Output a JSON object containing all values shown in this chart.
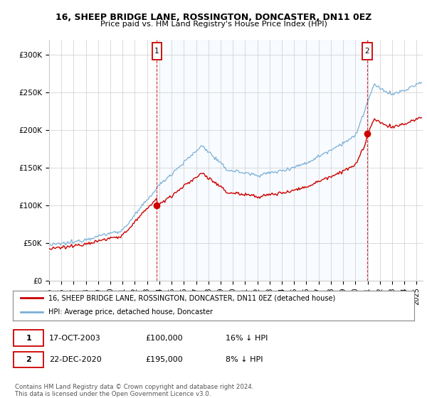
{
  "title_line1": "16, SHEEP BRIDGE LANE, ROSSINGTON, DONCASTER, DN11 0EZ",
  "title_line2": "Price paid vs. HM Land Registry's House Price Index (HPI)",
  "xlim_start": 1995.0,
  "xlim_end": 2025.5,
  "ylim": [
    0,
    320000
  ],
  "yticks": [
    0,
    50000,
    100000,
    150000,
    200000,
    250000,
    300000
  ],
  "ytick_labels": [
    "£0",
    "£50K",
    "£100K",
    "£150K",
    "£200K",
    "£250K",
    "£300K"
  ],
  "xtick_years": [
    1995,
    1996,
    1997,
    1998,
    1999,
    2000,
    2001,
    2002,
    2003,
    2004,
    2005,
    2006,
    2007,
    2008,
    2009,
    2010,
    2011,
    2012,
    2013,
    2014,
    2015,
    2016,
    2017,
    2018,
    2019,
    2020,
    2021,
    2022,
    2023,
    2024,
    2025
  ],
  "hpi_color": "#7ab0d8",
  "price_color": "#cc0000",
  "shade_color": "#ddeeff",
  "annotation_box_color": "#cc0000",
  "purchase1_x": 2003.8,
  "purchase1_y": 100000,
  "purchase2_x": 2020.97,
  "purchase2_y": 195000,
  "legend_line1": "16, SHEEP BRIDGE LANE, ROSSINGTON, DONCASTER, DN11 0EZ (detached house)",
  "legend_line2": "HPI: Average price, detached house, Doncaster",
  "table_row1": [
    "1",
    "17-OCT-2003",
    "£100,000",
    "16% ↓ HPI"
  ],
  "table_row2": [
    "2",
    "22-DEC-2020",
    "£195,000",
    "8% ↓ HPI"
  ],
  "footer": "Contains HM Land Registry data © Crown copyright and database right 2024.\nThis data is licensed under the Open Government Licence v3.0.",
  "background_color": "#ffffff",
  "grid_color": "#cccccc"
}
